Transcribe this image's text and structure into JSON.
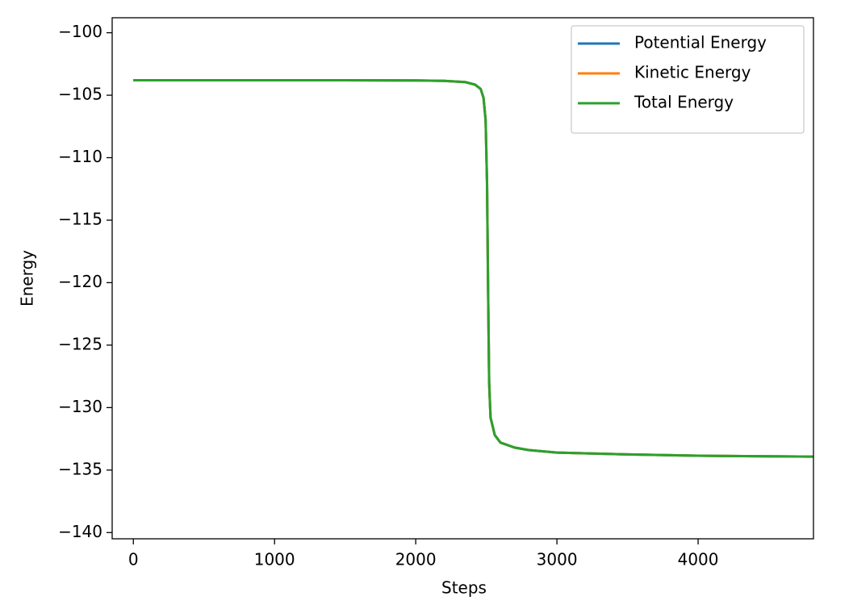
{
  "chart_data": {
    "type": "line",
    "xlabel": "Steps",
    "ylabel": "Energy",
    "x": [
      0,
      500,
      1000,
      1500,
      2000,
      2200,
      2350,
      2420,
      2460,
      2480,
      2495,
      2505,
      2512,
      2520,
      2530,
      2560,
      2600,
      2700,
      2800,
      3000,
      3500,
      4000,
      4500,
      4817
    ],
    "series": [
      {
        "name": "Potential Energy",
        "color": "#1f77b4",
        "values": [
          -103.8,
          -103.8,
          -103.8,
          -103.8,
          -103.82,
          -103.85,
          -103.95,
          -104.15,
          -104.5,
          -105.2,
          -107,
          -112,
          -120,
          -128,
          -130.8,
          -132.2,
          -132.8,
          -133.2,
          -133.4,
          -133.6,
          -133.75,
          -133.85,
          -133.9,
          -133.92
        ]
      },
      {
        "name": "Kinetic Energy",
        "color": "#ff7f0e",
        "values": [
          -103.8,
          -103.8,
          -103.8,
          -103.8,
          -103.82,
          -103.85,
          -103.95,
          -104.15,
          -104.5,
          -105.2,
          -107,
          -112,
          -120,
          -128,
          -130.8,
          -132.2,
          -132.8,
          -133.2,
          -133.4,
          -133.6,
          -133.75,
          -133.85,
          -133.9,
          -133.92
        ]
      },
      {
        "name": "Total Energy",
        "color": "#2ca02c",
        "values": [
          -103.8,
          -103.8,
          -103.8,
          -103.8,
          -103.82,
          -103.85,
          -103.95,
          -104.15,
          -104.5,
          -105.2,
          -107,
          -112,
          -120,
          -128,
          -130.8,
          -132.2,
          -132.8,
          -133.2,
          -133.4,
          -133.6,
          -133.75,
          -133.85,
          -133.9,
          -133.92
        ]
      }
    ],
    "xlim": [
      -150,
      4817
    ],
    "ylim": [
      -140.5,
      -98.8
    ],
    "xticks": [
      0,
      1000,
      2000,
      3000,
      4000
    ],
    "yticks": [
      {
        "value": -100,
        "label": "−100"
      },
      {
        "value": -105,
        "label": "−105"
      },
      {
        "value": -110,
        "label": "−110"
      },
      {
        "value": -115,
        "label": "−115"
      },
      {
        "value": -120,
        "label": "−120"
      },
      {
        "value": -125,
        "label": "−125"
      },
      {
        "value": -130,
        "label": "−130"
      },
      {
        "value": -135,
        "label": "−135"
      },
      {
        "value": -140,
        "label": "−140"
      }
    ],
    "legend": "upper right",
    "grid": false
  }
}
